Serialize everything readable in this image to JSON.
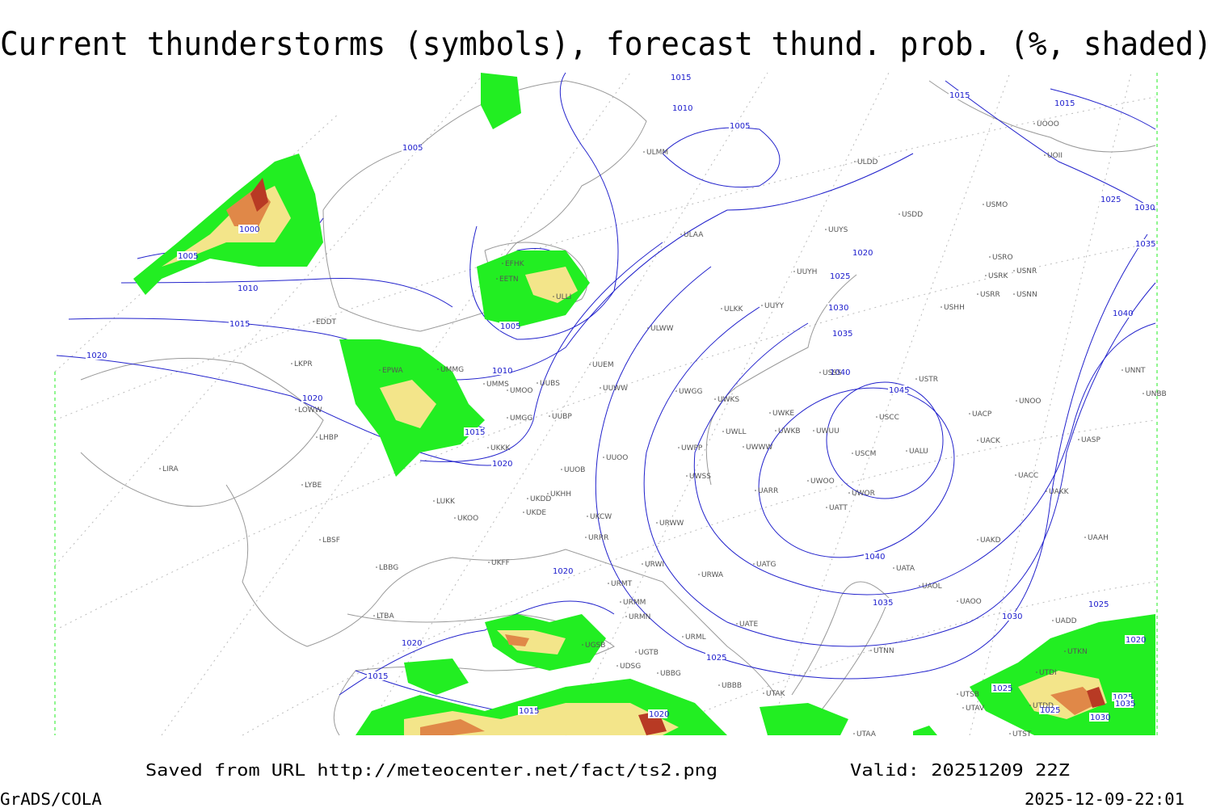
{
  "title": "Current thunderstorms (symbols), forecast thund. prob. (%, shaded)",
  "footer": {
    "source": "Saved from URL http://meteocenter.net/fact/ts2.png",
    "valid": "Valid: 20251209 22Z",
    "software": "GrADS/COLA",
    "timestamp": "2025-12-09-22:01"
  },
  "isobar_labels": [
    "1015",
    "1010",
    "1005",
    "1005",
    "1000",
    "1005",
    "1010",
    "1015",
    "1020",
    "1020",
    "1025",
    "1030",
    "1035",
    "1040",
    "1045",
    "1025",
    "1030",
    "1035",
    "1040",
    "1015",
    "1015",
    "1005",
    "1010",
    "1015",
    "1020",
    "1020",
    "1040",
    "1035",
    "1030",
    "1025",
    "1020",
    "1025",
    "1020",
    "1020",
    "1015",
    "1015",
    "1020",
    "1025",
    "1025",
    "1025",
    "1035",
    "1030"
  ],
  "stations": [
    "ULMM",
    "ULDD",
    "USDD",
    "USMO",
    "UUYS",
    "ULAA",
    "UUYH",
    "ULLI",
    "ULKK",
    "UUYY",
    "ULWW",
    "EFHK",
    "EETN",
    "EDDT",
    "LKPR",
    "EPWA",
    "UMMG",
    "UMMS",
    "UMOO",
    "UUBS",
    "UUEM",
    "UUWW",
    "UWGG",
    "UWKS",
    "UWKE",
    "UUBP",
    "UMGG",
    "USSS",
    "USTR",
    "USCC",
    "UACP",
    "UNOO",
    "UNNT",
    "UNBB",
    "USCM",
    "UALU",
    "UACK",
    "UASP",
    "UWOO",
    "UWOR",
    "UATT",
    "UACC",
    "UAKK",
    "UKKK",
    "UUOO",
    "UUOB",
    "UWPP",
    "UWLL",
    "UWWW",
    "UWKB",
    "UWUU",
    "UWSS",
    "UARR",
    "LOWW",
    "LHBP",
    "LIRA",
    "LYBE",
    "LUKK",
    "UKDD",
    "UKHH",
    "UKDE",
    "UKOO",
    "UKCW",
    "URWW",
    "URRR",
    "LBSF",
    "UKFF",
    "LBBG",
    "URMT",
    "URWI",
    "URWA",
    "UATG",
    "UATA",
    "UAOL",
    "UAOO",
    "UAKD",
    "UAAH",
    "URMM",
    "URMN",
    "UATE",
    "UGSB",
    "UGTB",
    "URML",
    "LTBA",
    "UDSG",
    "UBBG",
    "UBBB",
    "UTAK",
    "UTNN",
    "UTSB",
    "UTAV",
    "UTAA",
    "UTST",
    "UTDD",
    "UTDI",
    "UTKN",
    "UADD",
    "USRR",
    "USNN",
    "USHH",
    "USRK",
    "USNR",
    "USRO",
    "UOOO",
    "UOII"
  ]
}
